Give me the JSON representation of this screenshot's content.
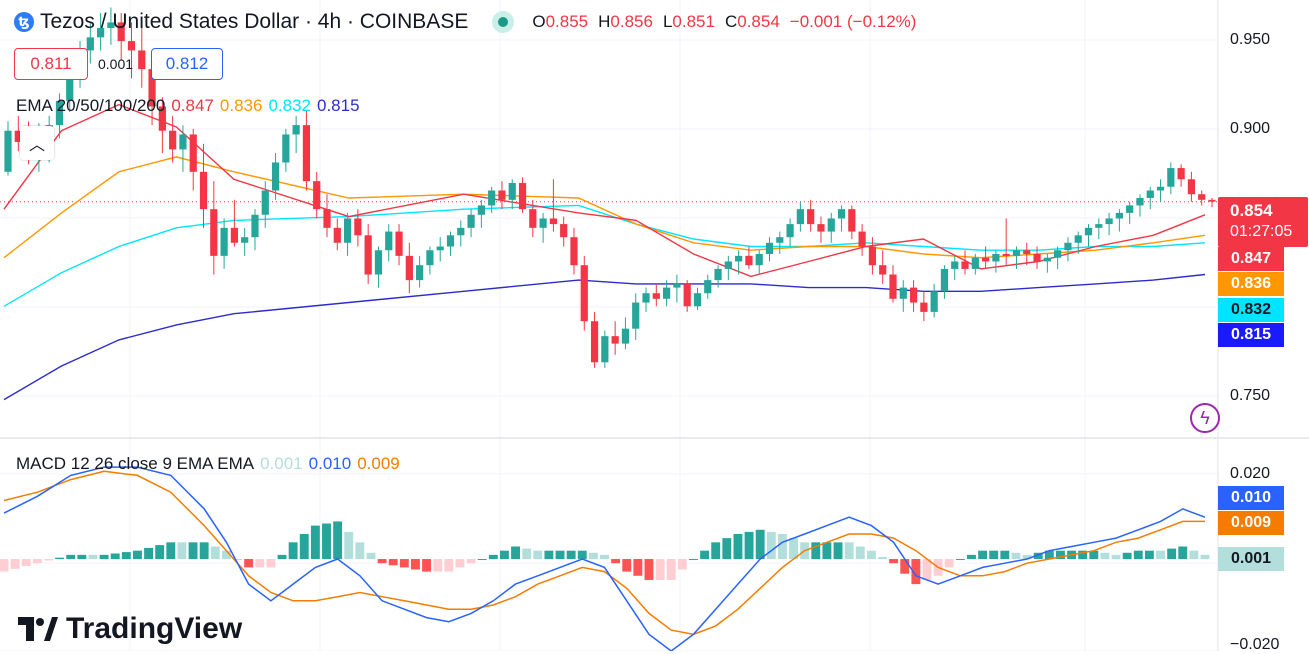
{
  "header": {
    "symbol_icon": "tezos-icon",
    "symbol_glyph": "ꜩ",
    "title": "Tezos / United States Dollar · 4h · COINBASE",
    "ohlc": [
      {
        "key": "O",
        "value": "0.855"
      },
      {
        "key": "H",
        "value": "0.856"
      },
      {
        "key": "L",
        "value": "0.851"
      },
      {
        "key": "C",
        "value": "0.854"
      }
    ],
    "change": "−0.001 (−0.12%)"
  },
  "trade": {
    "sell": "0.811",
    "spread": "0.001",
    "buy": "0.812"
  },
  "ema_legend": {
    "label": "EMA 20/50/100/200",
    "values": [
      "0.847",
      "0.836",
      "0.832",
      "0.815"
    ]
  },
  "macd_legend": {
    "label": "MACD 12 26 close 9 EMA EMA",
    "values": [
      "0.001",
      "0.010",
      "0.009"
    ]
  },
  "price_axis": {
    "ticks": [
      "0.950",
      "0.900",
      "0.750"
    ],
    "last_price": "0.854",
    "countdown": "01:27:05",
    "ema_tags": [
      "0.847",
      "0.836",
      "0.832",
      "0.815"
    ]
  },
  "macd_axis": {
    "ticks": [
      "0.020",
      "−0.020"
    ],
    "tags": [
      "0.010",
      "0.009",
      "0.001"
    ]
  },
  "logo": {
    "text": "TradingView"
  },
  "colors": {
    "up": "#26a69a",
    "down": "#f23645",
    "ema20": "#f23645",
    "ema50": "#ff9800",
    "ema100": "#00e5ff",
    "ema200": "#2c2ccc",
    "macd": "#2962ff",
    "signal": "#f57c00",
    "hist_up_strong": "#26a69a",
    "hist_up_weak": "#b2dfdb",
    "hist_down_strong": "#ff5252",
    "hist_down_weak": "#ffcdd2"
  },
  "chart_data": {
    "type": "candlestick",
    "title": "Tezos / United States Dollar · 4h · COINBASE",
    "price_range": [
      0.728,
      0.962
    ],
    "candles": [
      [
        0.87,
        0.897,
        0.868,
        0.892
      ],
      [
        0.892,
        0.9,
        0.881,
        0.886
      ],
      [
        0.886,
        0.897,
        0.874,
        0.88
      ],
      [
        0.88,
        0.896,
        0.87,
        0.883
      ],
      [
        0.883,
        0.9,
        0.875,
        0.895
      ],
      [
        0.895,
        0.912,
        0.888,
        0.908
      ],
      [
        0.908,
        0.925,
        0.902,
        0.92
      ],
      [
        0.92,
        0.94,
        0.915,
        0.935
      ],
      [
        0.935,
        0.95,
        0.928,
        0.942
      ],
      [
        0.942,
        0.955,
        0.935,
        0.947
      ],
      [
        0.947,
        0.958,
        0.938,
        0.95
      ],
      [
        0.95,
        0.955,
        0.93,
        0.94
      ],
      [
        0.94,
        0.95,
        0.92,
        0.935
      ],
      [
        0.935,
        0.948,
        0.915,
        0.925
      ],
      [
        0.925,
        0.935,
        0.895,
        0.905
      ],
      [
        0.905,
        0.91,
        0.88,
        0.892
      ],
      [
        0.892,
        0.9,
        0.875,
        0.882
      ],
      [
        0.882,
        0.895,
        0.87,
        0.89
      ],
      [
        0.89,
        0.893,
        0.86,
        0.87
      ],
      [
        0.87,
        0.885,
        0.84,
        0.85
      ],
      [
        0.85,
        0.865,
        0.815,
        0.825
      ],
      [
        0.825,
        0.845,
        0.818,
        0.84
      ],
      [
        0.84,
        0.855,
        0.83,
        0.832
      ],
      [
        0.832,
        0.84,
        0.825,
        0.835
      ],
      [
        0.835,
        0.85,
        0.828,
        0.847
      ],
      [
        0.847,
        0.865,
        0.84,
        0.86
      ],
      [
        0.86,
        0.88,
        0.855,
        0.875
      ],
      [
        0.875,
        0.893,
        0.87,
        0.89
      ],
      [
        0.89,
        0.9,
        0.88,
        0.895
      ],
      [
        0.895,
        0.903,
        0.86,
        0.865
      ],
      [
        0.865,
        0.87,
        0.845,
        0.85
      ],
      [
        0.85,
        0.858,
        0.835,
        0.84
      ],
      [
        0.84,
        0.845,
        0.828,
        0.832
      ],
      [
        0.832,
        0.848,
        0.825,
        0.845
      ],
      [
        0.845,
        0.85,
        0.83,
        0.836
      ],
      [
        0.836,
        0.842,
        0.81,
        0.815
      ],
      [
        0.815,
        0.83,
        0.808,
        0.828
      ],
      [
        0.828,
        0.842,
        0.822,
        0.838
      ],
      [
        0.838,
        0.842,
        0.82,
        0.825
      ],
      [
        0.825,
        0.832,
        0.805,
        0.812
      ],
      [
        0.812,
        0.825,
        0.808,
        0.82
      ],
      [
        0.82,
        0.83,
        0.815,
        0.828
      ],
      [
        0.828,
        0.835,
        0.822,
        0.83
      ],
      [
        0.83,
        0.838,
        0.825,
        0.836
      ],
      [
        0.836,
        0.844,
        0.83,
        0.84
      ],
      [
        0.84,
        0.85,
        0.835,
        0.847
      ],
      [
        0.847,
        0.855,
        0.84,
        0.852
      ],
      [
        0.852,
        0.862,
        0.848,
        0.86
      ],
      [
        0.86,
        0.865,
        0.85,
        0.855
      ],
      [
        0.855,
        0.866,
        0.85,
        0.864
      ],
      [
        0.864,
        0.867,
        0.848,
        0.85
      ],
      [
        0.85,
        0.855,
        0.835,
        0.84
      ],
      [
        0.84,
        0.848,
        0.832,
        0.845
      ],
      [
        0.845,
        0.866,
        0.838,
        0.842
      ],
      [
        0.842,
        0.846,
        0.83,
        0.835
      ],
      [
        0.835,
        0.84,
        0.815,
        0.82
      ],
      [
        0.82,
        0.825,
        0.785,
        0.79
      ],
      [
        0.79,
        0.795,
        0.765,
        0.768
      ],
      [
        0.768,
        0.785,
        0.765,
        0.782
      ],
      [
        0.782,
        0.79,
        0.772,
        0.778
      ],
      [
        0.778,
        0.792,
        0.775,
        0.786
      ],
      [
        0.786,
        0.805,
        0.78,
        0.8
      ],
      [
        0.8,
        0.808,
        0.795,
        0.805
      ],
      [
        0.805,
        0.81,
        0.798,
        0.802
      ],
      [
        0.802,
        0.812,
        0.798,
        0.808
      ],
      [
        0.808,
        0.815,
        0.8,
        0.81
      ],
      [
        0.81,
        0.812,
        0.795,
        0.798
      ],
      [
        0.798,
        0.808,
        0.796,
        0.805
      ],
      [
        0.805,
        0.815,
        0.802,
        0.812
      ],
      [
        0.812,
        0.82,
        0.808,
        0.818
      ],
      [
        0.818,
        0.825,
        0.812,
        0.822
      ],
      [
        0.822,
        0.828,
        0.815,
        0.825
      ],
      [
        0.825,
        0.83,
        0.818,
        0.82
      ],
      [
        0.82,
        0.828,
        0.815,
        0.826
      ],
      [
        0.826,
        0.835,
        0.822,
        0.832
      ],
      [
        0.832,
        0.838,
        0.826,
        0.835
      ],
      [
        0.835,
        0.845,
        0.83,
        0.842
      ],
      [
        0.842,
        0.854,
        0.838,
        0.85
      ],
      [
        0.85,
        0.855,
        0.838,
        0.842
      ],
      [
        0.842,
        0.846,
        0.832,
        0.838
      ],
      [
        0.838,
        0.848,
        0.832,
        0.845
      ],
      [
        0.845,
        0.852,
        0.838,
        0.85
      ],
      [
        0.85,
        0.852,
        0.834,
        0.838
      ],
      [
        0.838,
        0.842,
        0.825,
        0.83
      ],
      [
        0.83,
        0.835,
        0.815,
        0.82
      ],
      [
        0.82,
        0.828,
        0.81,
        0.815
      ],
      [
        0.815,
        0.82,
        0.8,
        0.802
      ],
      [
        0.802,
        0.812,
        0.795,
        0.808
      ],
      [
        0.808,
        0.812,
        0.795,
        0.8
      ],
      [
        0.8,
        0.806,
        0.79,
        0.795
      ],
      [
        0.795,
        0.81,
        0.792,
        0.806
      ],
      [
        0.806,
        0.82,
        0.802,
        0.818
      ],
      [
        0.818,
        0.825,
        0.812,
        0.822
      ],
      [
        0.822,
        0.828,
        0.815,
        0.818
      ],
      [
        0.818,
        0.826,
        0.815,
        0.824
      ],
      [
        0.824,
        0.83,
        0.818,
        0.822
      ],
      [
        0.822,
        0.828,
        0.816,
        0.826
      ],
      [
        0.826,
        0.845,
        0.82,
        0.825
      ],
      [
        0.825,
        0.83,
        0.818,
        0.828
      ],
      [
        0.828,
        0.832,
        0.82,
        0.826
      ],
      [
        0.826,
        0.83,
        0.818,
        0.822
      ],
      [
        0.822,
        0.826,
        0.816,
        0.824
      ],
      [
        0.824,
        0.83,
        0.818,
        0.828
      ],
      [
        0.828,
        0.835,
        0.822,
        0.832
      ],
      [
        0.832,
        0.838,
        0.826,
        0.836
      ],
      [
        0.836,
        0.842,
        0.83,
        0.84
      ],
      [
        0.84,
        0.845,
        0.834,
        0.842
      ],
      [
        0.842,
        0.848,
        0.836,
        0.845
      ],
      [
        0.845,
        0.85,
        0.838,
        0.848
      ],
      [
        0.848,
        0.854,
        0.842,
        0.852
      ],
      [
        0.852,
        0.858,
        0.846,
        0.856
      ],
      [
        0.856,
        0.862,
        0.85,
        0.86
      ],
      [
        0.86,
        0.866,
        0.854,
        0.862
      ],
      [
        0.862,
        0.875,
        0.858,
        0.872
      ],
      [
        0.872,
        0.874,
        0.862,
        0.866
      ],
      [
        0.866,
        0.87,
        0.854,
        0.858
      ],
      [
        0.858,
        0.86,
        0.852,
        0.855
      ],
      [
        0.855,
        0.856,
        0.851,
        0.854
      ]
    ],
    "ema20": [
      [
        0,
        0.85
      ],
      [
        10,
        0.892
      ],
      [
        20,
        0.906
      ],
      [
        30,
        0.894
      ],
      [
        40,
        0.866
      ],
      [
        60,
        0.846
      ],
      [
        80,
        0.858
      ],
      [
        100,
        0.848
      ],
      [
        110,
        0.844
      ],
      [
        120,
        0.826
      ],
      [
        130,
        0.814
      ],
      [
        140,
        0.822
      ],
      [
        150,
        0.83
      ],
      [
        160,
        0.834
      ],
      [
        170,
        0.818
      ],
      [
        180,
        0.822
      ],
      [
        190,
        0.83
      ],
      [
        200,
        0.836
      ],
      [
        209,
        0.847
      ]
    ],
    "ema50": [
      [
        0,
        0.824
      ],
      [
        10,
        0.848
      ],
      [
        20,
        0.87
      ],
      [
        30,
        0.878
      ],
      [
        40,
        0.87
      ],
      [
        60,
        0.856
      ],
      [
        80,
        0.858
      ],
      [
        100,
        0.856
      ],
      [
        110,
        0.842
      ],
      [
        120,
        0.832
      ],
      [
        130,
        0.828
      ],
      [
        140,
        0.83
      ],
      [
        150,
        0.83
      ],
      [
        160,
        0.826
      ],
      [
        170,
        0.824
      ],
      [
        180,
        0.826
      ],
      [
        190,
        0.828
      ],
      [
        200,
        0.832
      ],
      [
        209,
        0.836
      ]
    ],
    "ema100": [
      [
        0,
        0.798
      ],
      [
        10,
        0.816
      ],
      [
        20,
        0.83
      ],
      [
        30,
        0.84
      ],
      [
        40,
        0.844
      ],
      [
        60,
        0.846
      ],
      [
        80,
        0.85
      ],
      [
        100,
        0.852
      ],
      [
        110,
        0.842
      ],
      [
        120,
        0.834
      ],
      [
        130,
        0.83
      ],
      [
        140,
        0.83
      ],
      [
        150,
        0.832
      ],
      [
        160,
        0.83
      ],
      [
        170,
        0.828
      ],
      [
        180,
        0.828
      ],
      [
        190,
        0.83
      ],
      [
        200,
        0.83
      ],
      [
        209,
        0.832
      ]
    ],
    "ema200": [
      [
        0,
        0.748
      ],
      [
        10,
        0.766
      ],
      [
        20,
        0.78
      ],
      [
        30,
        0.788
      ],
      [
        40,
        0.794
      ],
      [
        60,
        0.8
      ],
      [
        80,
        0.806
      ],
      [
        100,
        0.812
      ],
      [
        110,
        0.81
      ],
      [
        120,
        0.81
      ],
      [
        130,
        0.81
      ],
      [
        140,
        0.808
      ],
      [
        150,
        0.808
      ],
      [
        160,
        0.806
      ],
      [
        170,
        0.806
      ],
      [
        180,
        0.808
      ],
      [
        190,
        0.81
      ],
      [
        200,
        0.812
      ],
      [
        209,
        0.815
      ]
    ],
    "macd_range": [
      -0.022,
      0.028
    ],
    "macd_line": [
      [
        0,
        0.011
      ],
      [
        3,
        0.015
      ],
      [
        6,
        0.02
      ],
      [
        9,
        0.022
      ],
      [
        12,
        0.022
      ],
      [
        15,
        0.02
      ],
      [
        18,
        0.012
      ],
      [
        20,
        0.004
      ],
      [
        22,
        -0.006
      ],
      [
        24,
        -0.01
      ],
      [
        26,
        -0.006
      ],
      [
        28,
        -0.002
      ],
      [
        30,
        0.0
      ],
      [
        32,
        -0.004
      ],
      [
        34,
        -0.01
      ],
      [
        36,
        -0.012
      ],
      [
        38,
        -0.014
      ],
      [
        40,
        -0.015
      ],
      [
        42,
        -0.013
      ],
      [
        44,
        -0.01
      ],
      [
        46,
        -0.006
      ],
      [
        48,
        -0.004
      ],
      [
        50,
        -0.002
      ],
      [
        52,
        0.0
      ],
      [
        54,
        -0.002
      ],
      [
        56,
        -0.01
      ],
      [
        58,
        -0.018
      ],
      [
        60,
        -0.022
      ],
      [
        62,
        -0.018
      ],
      [
        64,
        -0.012
      ],
      [
        66,
        -0.006
      ],
      [
        68,
        0.0
      ],
      [
        70,
        0.004
      ],
      [
        72,
        0.006
      ],
      [
        74,
        0.008
      ],
      [
        76,
        0.01
      ],
      [
        78,
        0.008
      ],
      [
        80,
        0.004
      ],
      [
        82,
        -0.004
      ],
      [
        84,
        -0.006
      ],
      [
        86,
        -0.004
      ],
      [
        88,
        -0.002
      ],
      [
        90,
        -0.001
      ],
      [
        92,
        0.0
      ],
      [
        94,
        0.002
      ],
      [
        96,
        0.003
      ],
      [
        98,
        0.004
      ],
      [
        100,
        0.005
      ],
      [
        102,
        0.007
      ],
      [
        104,
        0.009
      ],
      [
        106,
        0.012
      ],
      [
        108,
        0.01
      ]
    ],
    "signal_line": [
      [
        0,
        0.014
      ],
      [
        3,
        0.016
      ],
      [
        6,
        0.019
      ],
      [
        9,
        0.021
      ],
      [
        12,
        0.02
      ],
      [
        15,
        0.016
      ],
      [
        18,
        0.008
      ],
      [
        20,
        0.002
      ],
      [
        22,
        -0.004
      ],
      [
        24,
        -0.008
      ],
      [
        26,
        -0.01
      ],
      [
        28,
        -0.01
      ],
      [
        30,
        -0.009
      ],
      [
        32,
        -0.008
      ],
      [
        34,
        -0.009
      ],
      [
        36,
        -0.01
      ],
      [
        38,
        -0.011
      ],
      [
        40,
        -0.012
      ],
      [
        42,
        -0.012
      ],
      [
        44,
        -0.011
      ],
      [
        46,
        -0.009
      ],
      [
        48,
        -0.006
      ],
      [
        50,
        -0.004
      ],
      [
        52,
        -0.002
      ],
      [
        54,
        -0.003
      ],
      [
        56,
        -0.007
      ],
      [
        58,
        -0.013
      ],
      [
        60,
        -0.017
      ],
      [
        62,
        -0.018
      ],
      [
        64,
        -0.016
      ],
      [
        66,
        -0.012
      ],
      [
        68,
        -0.007
      ],
      [
        70,
        -0.002
      ],
      [
        72,
        0.002
      ],
      [
        74,
        0.004
      ],
      [
        76,
        0.006
      ],
      [
        78,
        0.006
      ],
      [
        80,
        0.005
      ],
      [
        82,
        0.002
      ],
      [
        84,
        -0.002
      ],
      [
        86,
        -0.004
      ],
      [
        88,
        -0.004
      ],
      [
        90,
        -0.003
      ],
      [
        92,
        -0.001
      ],
      [
        94,
        0.0
      ],
      [
        96,
        0.001
      ],
      [
        98,
        0.002
      ],
      [
        100,
        0.004
      ],
      [
        102,
        0.005
      ],
      [
        104,
        0.007
      ],
      [
        106,
        0.009
      ],
      [
        108,
        0.009
      ]
    ]
  }
}
